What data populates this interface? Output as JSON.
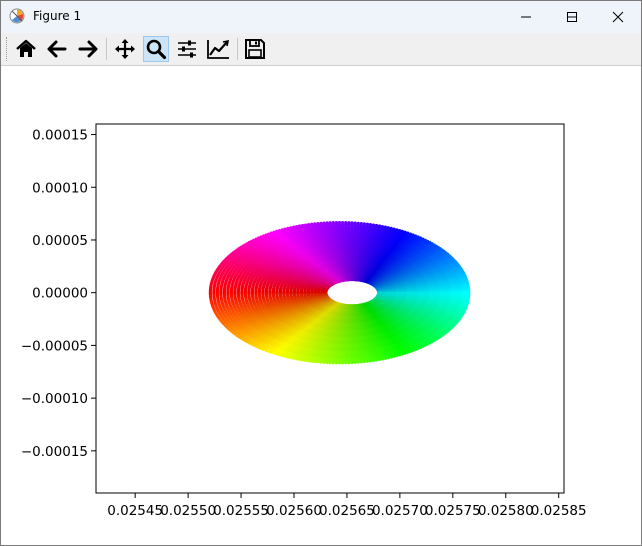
{
  "window": {
    "title": "Figure 1",
    "controls": [
      "minimize-icon",
      "maximize-icon",
      "close-icon"
    ]
  },
  "toolbar": {
    "buttons": [
      {
        "name": "home",
        "icon": "home-icon",
        "active": false
      },
      {
        "name": "back",
        "icon": "arrow-left-icon",
        "active": false
      },
      {
        "name": "forward",
        "icon": "arrow-right-icon",
        "active": false
      },
      {
        "name": "pan",
        "icon": "move-icon",
        "active": false
      },
      {
        "name": "zoom",
        "icon": "magnifier-icon",
        "active": true
      },
      {
        "name": "configure-subplots",
        "icon": "sliders-icon",
        "active": false
      },
      {
        "name": "edit-axes",
        "icon": "line-chart-icon",
        "active": false
      },
      {
        "name": "save",
        "icon": "floppy-icon",
        "active": false
      }
    ]
  },
  "chart_data": {
    "type": "scatter",
    "title": "",
    "xlabel": "",
    "ylabel": "",
    "xlim": [
      0.025413,
      0.025855
    ],
    "ylim": [
      -0.00019,
      0.00016
    ],
    "x_ticks": [
      "0.02545",
      "0.02550",
      "0.02555",
      "0.02560",
      "0.02565",
      "0.02570",
      "0.02575",
      "0.02580",
      "0.02585"
    ],
    "x_tick_values": [
      0.02545,
      0.0255,
      0.02555,
      0.0256,
      0.02565,
      0.0257,
      0.02575,
      0.0258,
      0.02585
    ],
    "y_ticks": [
      "0.00015",
      "0.00010",
      "0.00005",
      "0.00000",
      "−0.00005",
      "−0.00010",
      "−0.00015"
    ],
    "y_tick_values": [
      0.00015,
      0.0001,
      5e-05,
      0,
      -5e-05,
      -0.0001,
      -0.00015
    ],
    "grid": false,
    "series": [
      {
        "shape": "annular ring of densely packed points, colored by hue around the ring",
        "outer_ring": {
          "cx": 0.025643,
          "cy": 0.0,
          "rx": 0.000122,
          "ry": 6.65e-05
        },
        "inner_hole": {
          "cx": 0.025655,
          "cy": 0.0,
          "rx": 2.5e-05,
          "ry": 1.25e-05
        },
        "colormap": "hsv"
      }
    ]
  }
}
